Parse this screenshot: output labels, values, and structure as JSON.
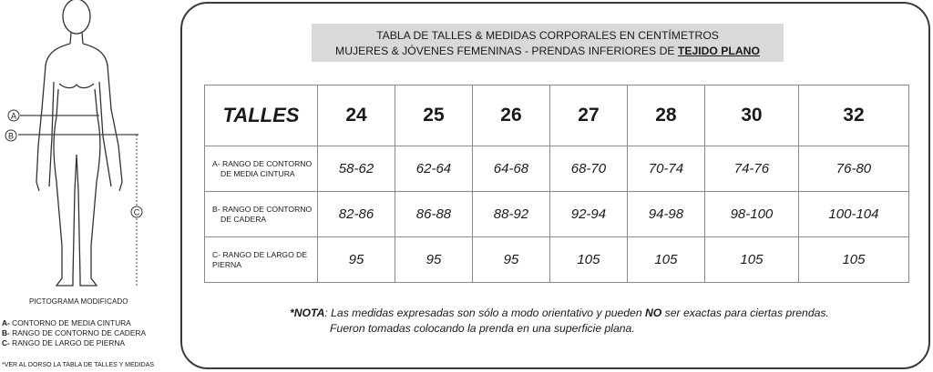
{
  "pictogram": {
    "markers": [
      "A",
      "B",
      "C"
    ],
    "title": "PICTOGRAMA MODIFICADO",
    "legend": [
      {
        "letter": "A-",
        "text": " CONTORNO DE MEDIA CINTURA"
      },
      {
        "letter": "B-",
        "text": " RANGO DE CONTORNO DE CADERA"
      },
      {
        "letter": "C-",
        "text": " RANGO DE LARGO DE PIERNA"
      }
    ],
    "footnote": "*VER AL DORSO LA TABLA DE TALLES Y MEDIDAS"
  },
  "header": {
    "line1": "TABLA DE TALLES & MEDIDAS CORPORALES EN CENTÍMETROS",
    "line2_prefix": "MUJERES & JÓVENES FEMENINAS - PRENDAS INFERIORES DE ",
    "line2_emphasis": "TEJIDO PLANO"
  },
  "table": {
    "header_label": "TALLES",
    "sizes": [
      "24",
      "25",
      "26",
      "27",
      "28",
      "30",
      "32"
    ],
    "rows": [
      {
        "label1": "A- RANGO DE CONTORNO",
        "label2": "DE MEDIA CINTURA",
        "values": [
          "58-62",
          "62-64",
          "64-68",
          "68-70",
          "70-74",
          "74-76",
          "76-80"
        ]
      },
      {
        "label1": "B- RANGO DE CONTORNO",
        "label2": "DE CADERA",
        "values": [
          "82-86",
          "86-88",
          "88-92",
          "92-94",
          "94-98",
          "98-100",
          "100-104"
        ]
      },
      {
        "label1": "C- RANGO DE LARGO DE",
        "label2": "PIERNA",
        "values": [
          "95",
          "95",
          "95",
          "105",
          "105",
          "105",
          "105"
        ]
      }
    ]
  },
  "note": {
    "prefix": "*NOTA",
    "text1": ": Las medidas expresadas son sólo a modo orientativo y pueden ",
    "bold": "NO",
    "text2": " ser exactas para ciertas prendas.",
    "line2": "Fueron tomadas colocando la prenda en una superficie plana."
  }
}
